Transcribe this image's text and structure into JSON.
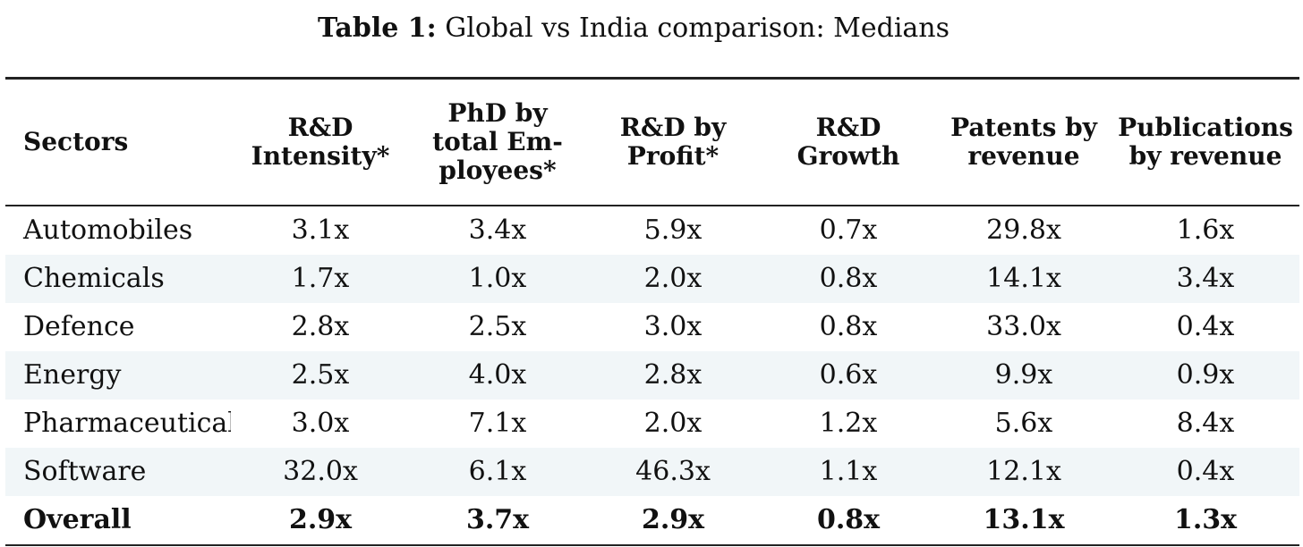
{
  "caption": {
    "label": "Table 1:",
    "text": "Global vs India comparison: Medians"
  },
  "table": {
    "headers": [
      {
        "lines": [
          "Sectors"
        ]
      },
      {
        "lines": [
          "R&D",
          "Intensity*"
        ]
      },
      {
        "lines": [
          "PhD by",
          "total Em-",
          "ployees*"
        ]
      },
      {
        "lines": [
          "R&D by",
          "Profit*"
        ]
      },
      {
        "lines": [
          "R&D",
          "Growth"
        ]
      },
      {
        "lines": [
          "Patents by",
          "revenue"
        ]
      },
      {
        "lines": [
          "Publications",
          "by revenue"
        ]
      }
    ],
    "rows": [
      [
        "Automobiles",
        "3.1x",
        "3.4x",
        "5.9x",
        "0.7x",
        "29.8x",
        "1.6x"
      ],
      [
        "Chemicals",
        "1.7x",
        "1.0x",
        "2.0x",
        "0.8x",
        "14.1x",
        "3.4x"
      ],
      [
        "Defence",
        "2.8x",
        "2.5x",
        "3.0x",
        "0.8x",
        "33.0x",
        "0.4x"
      ],
      [
        "Energy",
        "2.5x",
        "4.0x",
        "2.8x",
        "0.6x",
        "9.9x",
        "0.9x"
      ],
      [
        "Pharmaceuticals",
        "3.0x",
        "7.1x",
        "2.0x",
        "1.2x",
        "5.6x",
        "8.4x"
      ],
      [
        "Software",
        "32.0x",
        "6.1x",
        "46.3x",
        "1.1x",
        "12.1x",
        "0.4x"
      ],
      [
        "Overall",
        "2.9x",
        "3.7x",
        "2.9x",
        "0.8x",
        "13.1x",
        "1.3x"
      ]
    ]
  }
}
